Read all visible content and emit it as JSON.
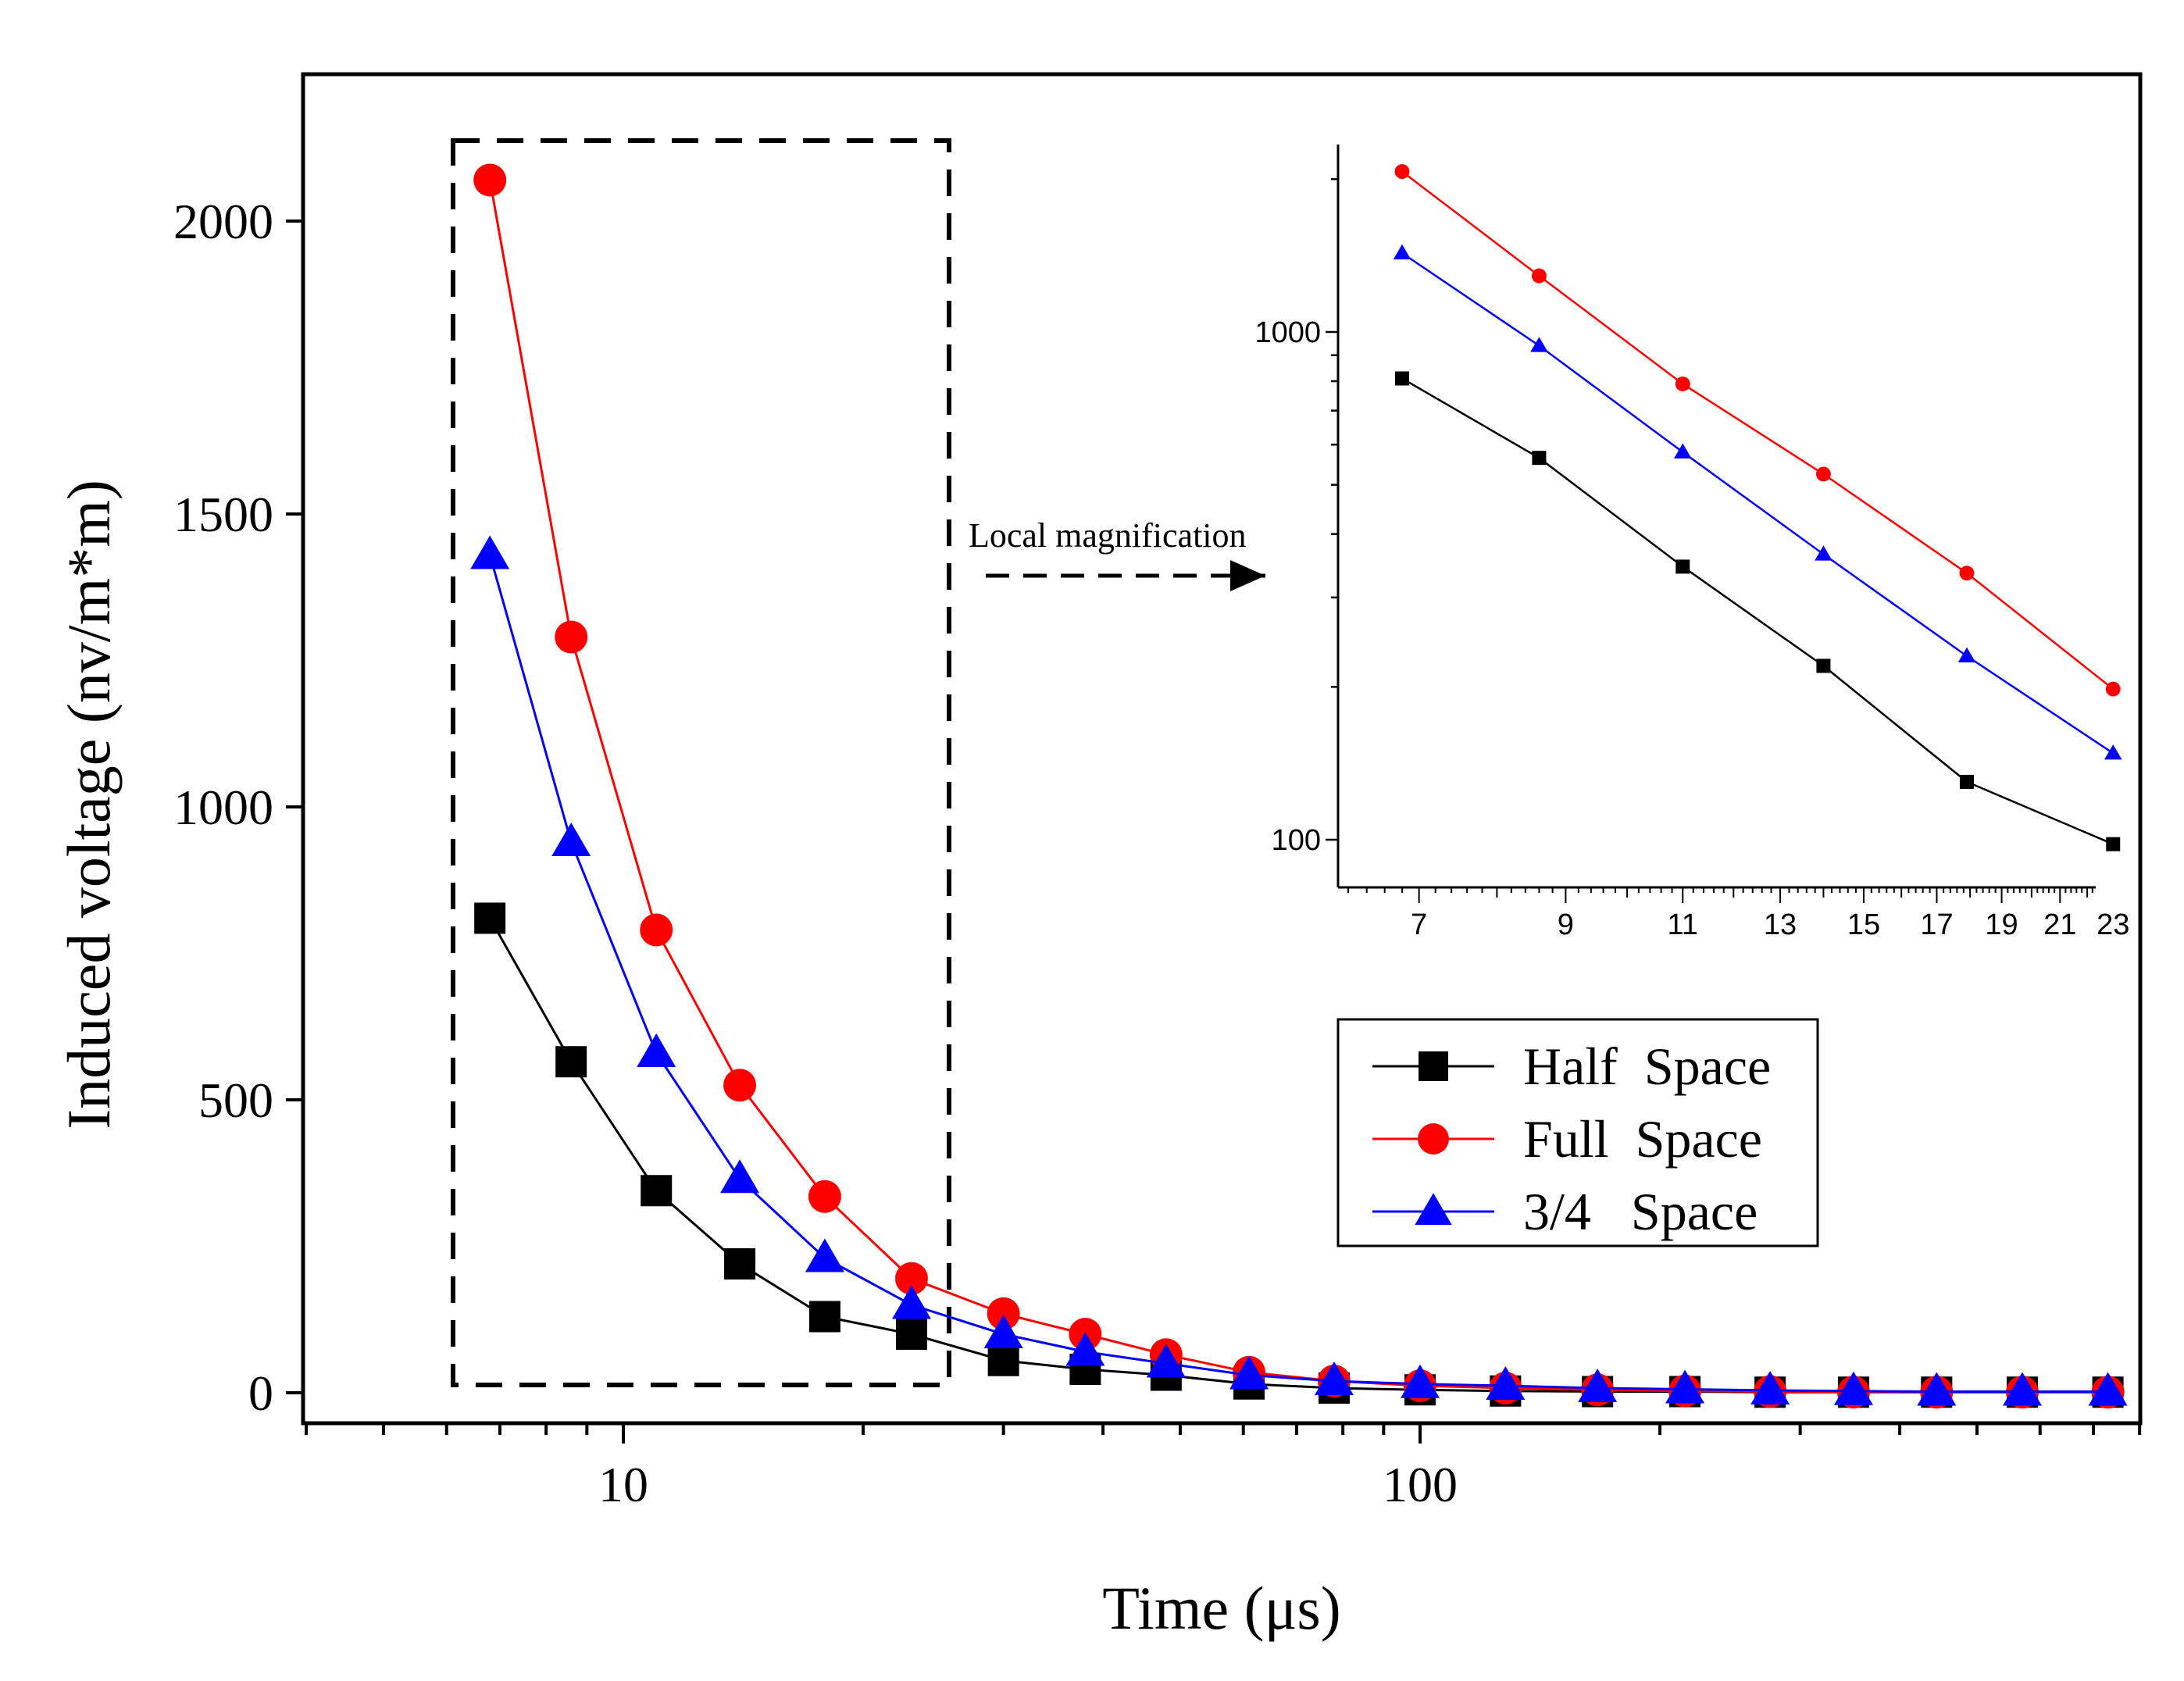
{
  "chart_data": [
    {
      "type": "line",
      "xscale": "log",
      "xlabel": "Time (μs)",
      "ylabel": "Induced voltage (nv/m*m)",
      "xlim": [
        4,
        900
      ],
      "ylim": [
        -50,
        2250
      ],
      "xticks": [
        10,
        100
      ],
      "xtick_labels": [
        "10",
        "100"
      ],
      "yticks": [
        0,
        500,
        1000,
        1500,
        2000
      ],
      "ytick_labels": [
        "0",
        "500",
        "1000",
        "1500",
        "2000"
      ],
      "x": [
        6.8,
        8.6,
        11.0,
        14.0,
        17.9,
        23.0,
        30.0,
        38.0,
        48.0,
        61.0,
        78.0,
        100.0,
        128.0,
        167.0,
        215.0,
        275.0,
        350.0,
        445.0,
        570.0,
        730.0
      ],
      "series": [
        {
          "name": "Half  Space",
          "color": "#000000",
          "marker": "square",
          "values": [
            810,
            565,
            345,
            220,
            130,
            100,
            55,
            40,
            30,
            15,
            8,
            5,
            3,
            2,
            2,
            1,
            1,
            1,
            1,
            1
          ]
        },
        {
          "name": "Full  Space",
          "color": "#ff0000",
          "marker": "circle",
          "values": [
            2070,
            1290,
            790,
            525,
            335,
            195,
            135,
            100,
            65,
            35,
            20,
            12,
            8,
            5,
            3,
            2,
            1,
            1,
            1,
            1
          ]
        },
        {
          "name": "3/4   Space",
          "color": "#0000ff",
          "marker": "triangle",
          "values": [
            1430,
            940,
            580,
            365,
            230,
            150,
            100,
            70,
            50,
            30,
            20,
            15,
            12,
            8,
            6,
            4,
            3,
            2,
            2,
            2
          ]
        }
      ],
      "legend_position": "lower-right",
      "highlight_box": "dashed rectangle around first six time points",
      "annotation": "Local magnification"
    },
    {
      "type": "line",
      "role": "inset",
      "xscale": "log",
      "yscale": "log",
      "xlim": [
        6.2,
        24
      ],
      "ylim": [
        80,
        2500
      ],
      "xticks": [
        7,
        9,
        11,
        13,
        15,
        17,
        19,
        21,
        23
      ],
      "xtick_labels": [
        "7",
        "9",
        "11",
        "13",
        "15",
        "17",
        "19",
        "21",
        "23"
      ],
      "yticks": [
        100,
        1000
      ],
      "ytick_labels": [
        "100",
        "1000"
      ],
      "x": [
        6.8,
        8.6,
        11.0,
        14.0,
        17.9,
        23.0
      ],
      "series": [
        {
          "name": "Half  Space",
          "color": "#000000",
          "marker": "square",
          "values": [
            810,
            565,
            345,
            220,
            130,
            98
          ]
        },
        {
          "name": "Full  Space",
          "color": "#ff0000",
          "marker": "circle",
          "values": [
            2070,
            1290,
            790,
            525,
            335,
            198
          ]
        },
        {
          "name": "3/4   Space",
          "color": "#0000ff",
          "marker": "triangle",
          "values": [
            1430,
            940,
            580,
            365,
            230,
            148
          ]
        }
      ]
    }
  ]
}
